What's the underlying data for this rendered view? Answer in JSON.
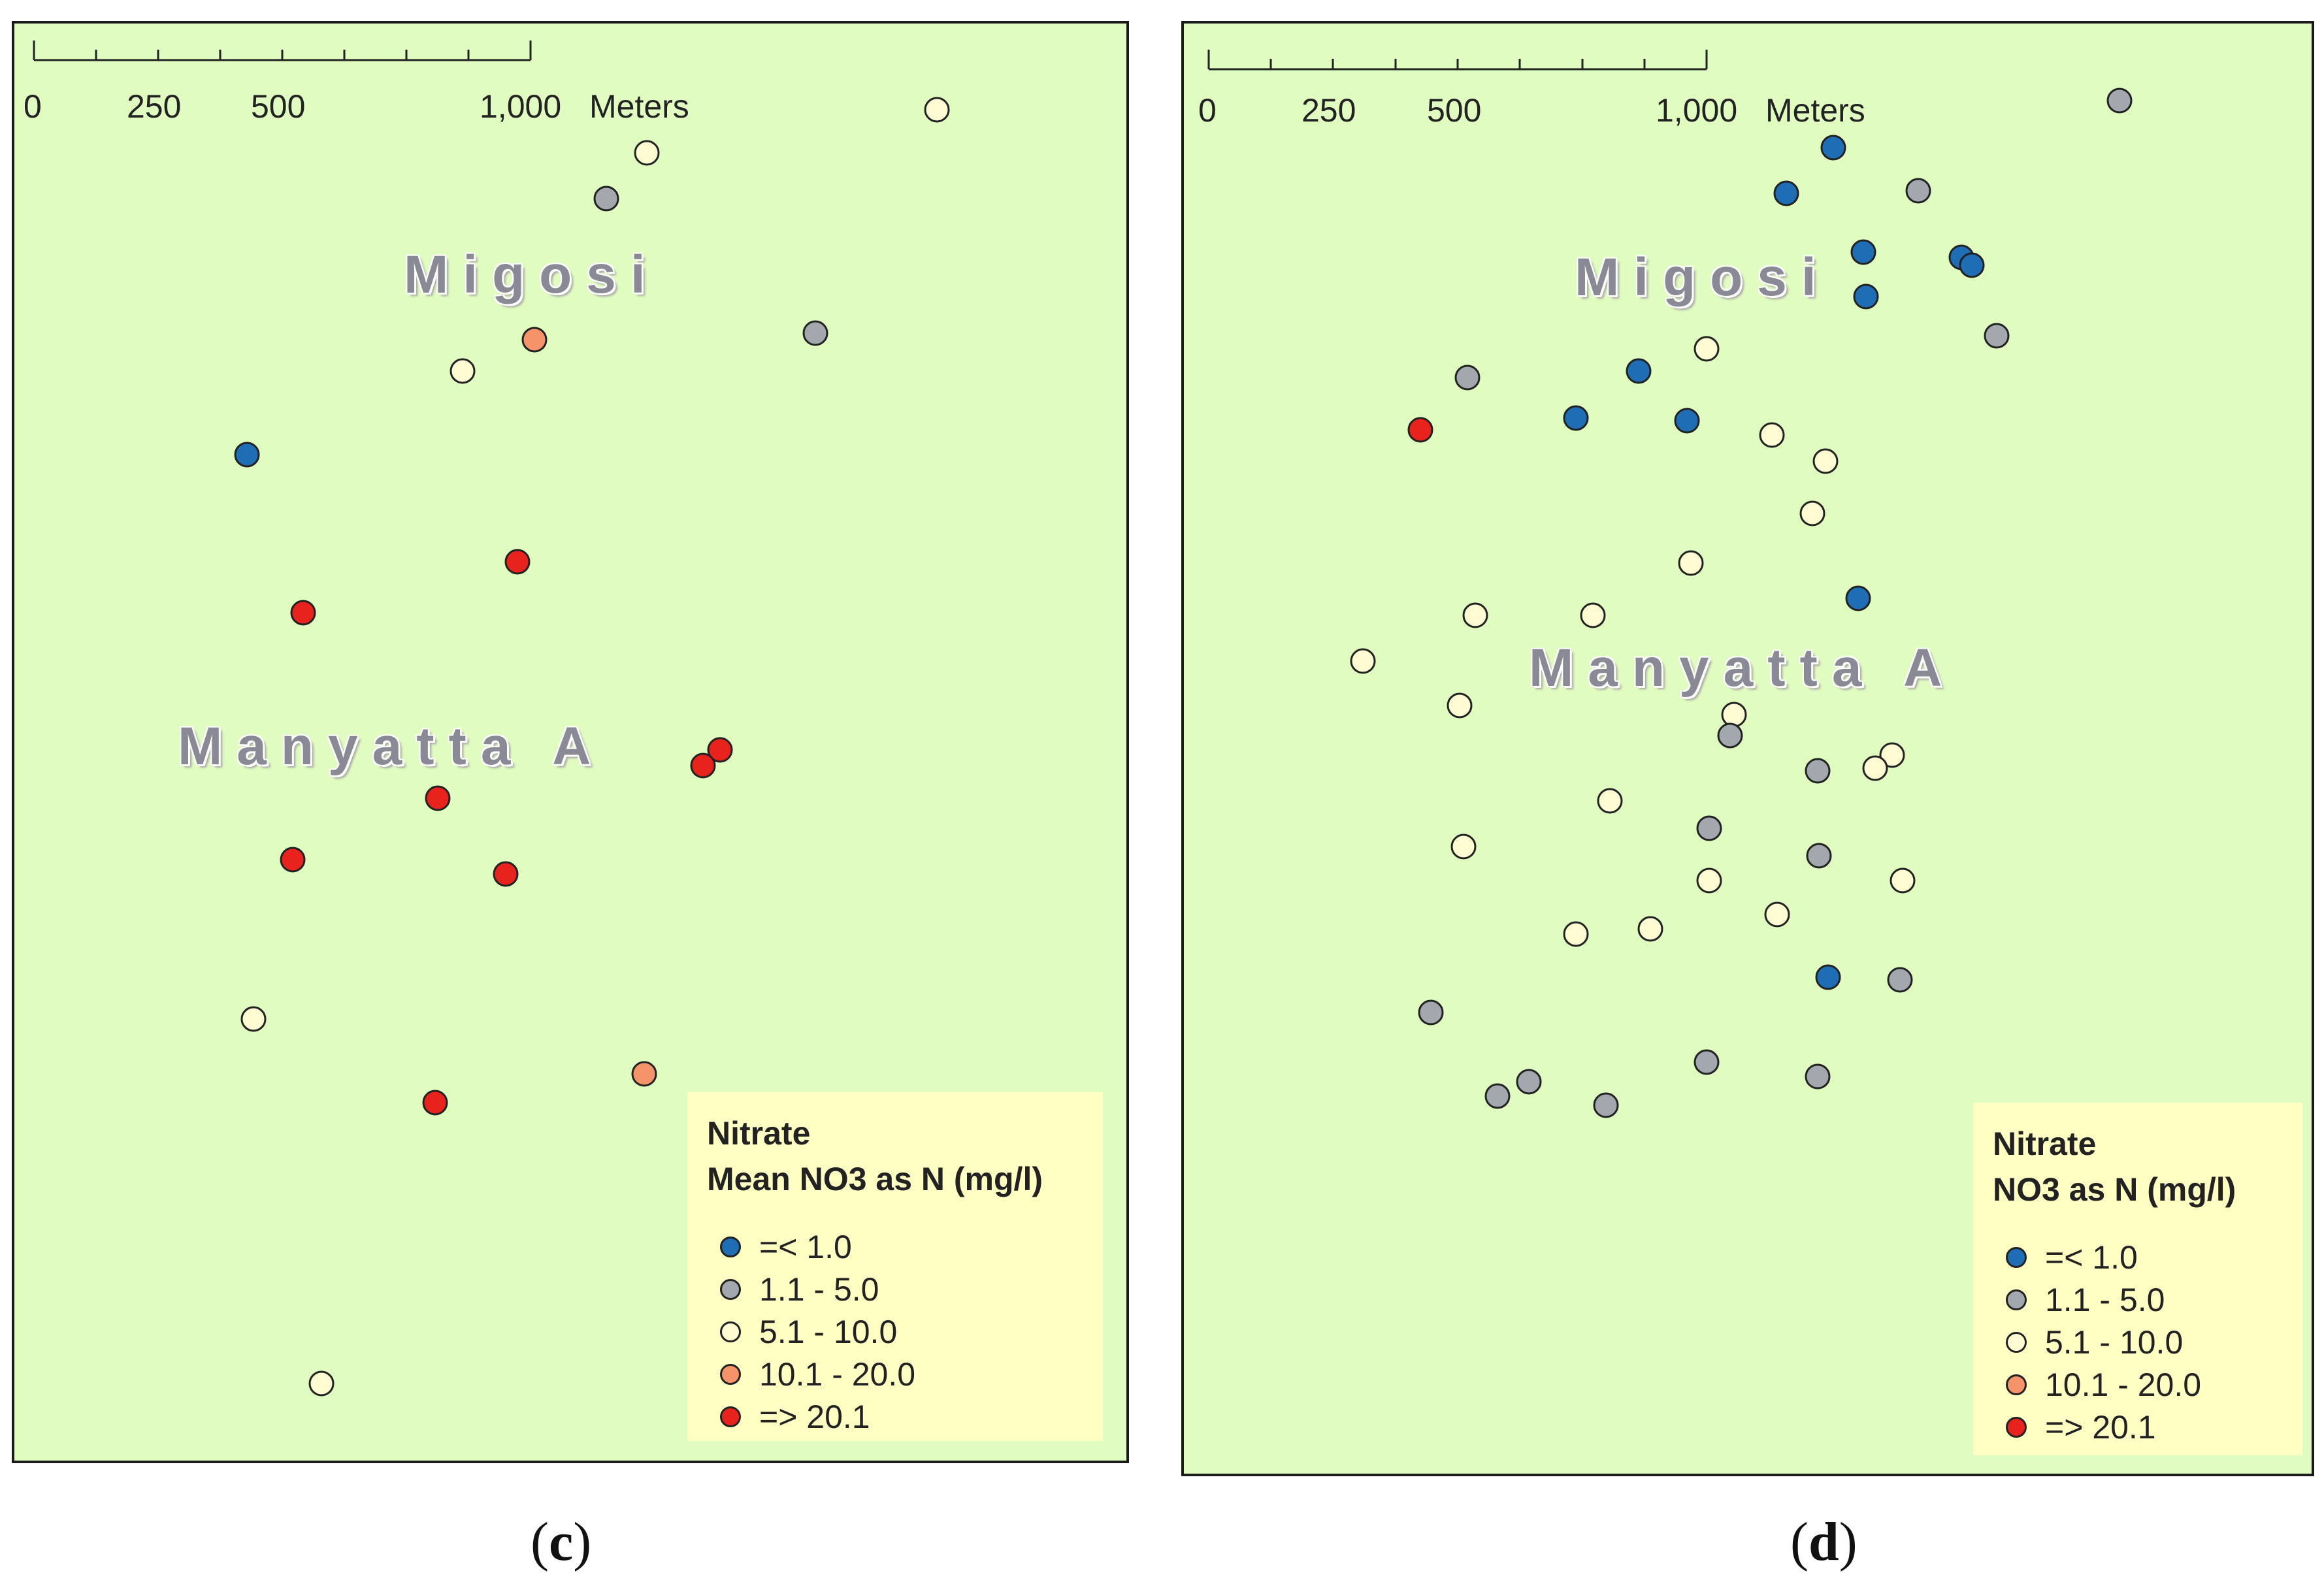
{
  "legend_classes": [
    {
      "key": "c1",
      "label": "=< 1.0",
      "color": "#1f6db5"
    },
    {
      "key": "c2",
      "label": "1.1 - 5.0",
      "color": "#a2a8ad"
    },
    {
      "key": "c3",
      "label": "5.1 - 10.0",
      "color": "#fffbd2"
    },
    {
      "key": "c4",
      "label": "10.1 - 20.0",
      "color": "#f5936a"
    },
    {
      "key": "c5",
      "label": "=> 20.1",
      "color": "#e8221c"
    }
  ],
  "panels": {
    "c": {
      "caption_letter": "c",
      "scalebar": {
        "labels": [
          "0",
          "250",
          "500",
          "1,000"
        ],
        "unit": "Meters"
      },
      "places": [
        "Migosi",
        "Manyatta A"
      ],
      "legend": {
        "title_line1": "Nitrate",
        "title_line2": "Mean NO3 as N (mg/l)"
      }
    },
    "d": {
      "caption_letter": "d",
      "scalebar": {
        "labels": [
          "0",
          "250",
          "500",
          "1,000"
        ],
        "unit": "Meters"
      },
      "places": [
        "Migosi",
        "Manyatta A"
      ],
      "legend": {
        "title_line1": "Nitrate",
        "title_line2": "NO3 as N (mg/l)"
      }
    }
  }
}
